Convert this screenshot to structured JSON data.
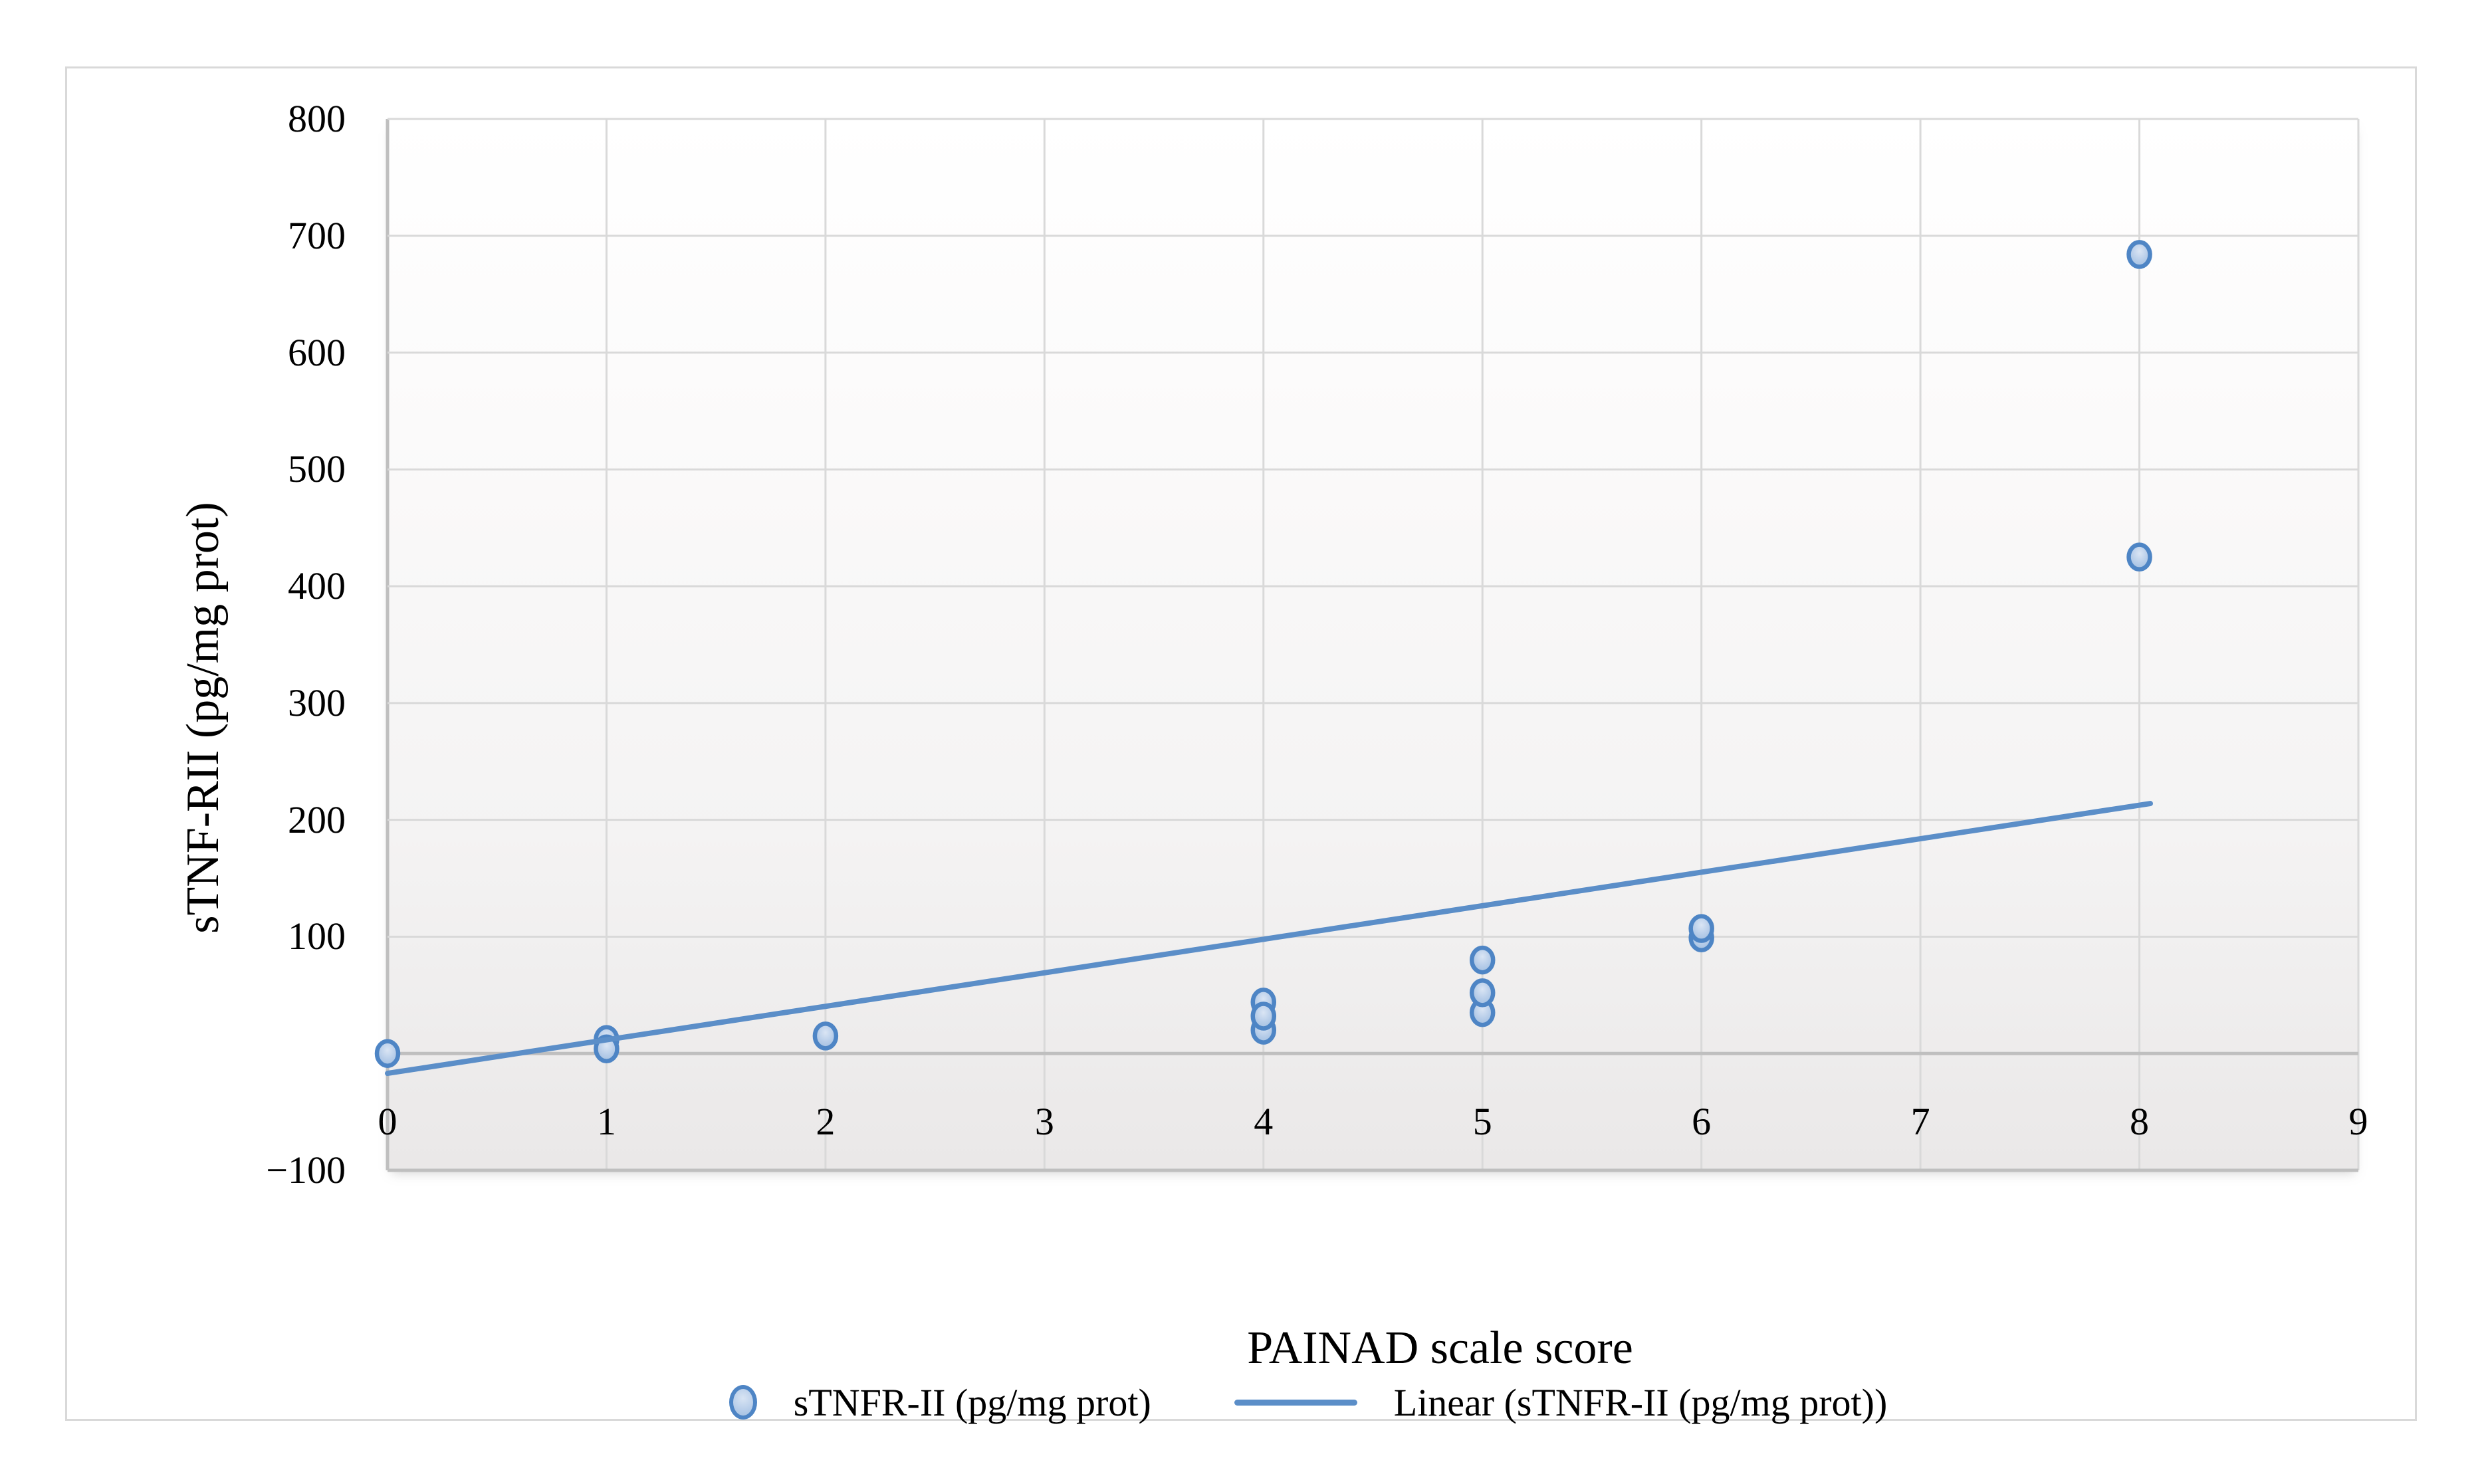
{
  "chart_data": {
    "type": "scatter",
    "title": "",
    "xlabel": "PAINAD scale score",
    "ylabel": "sTNF-RII (pg/mg prot)",
    "xlim": [
      0,
      9
    ],
    "ylim": [
      -100,
      800
    ],
    "grid": true,
    "grid_step_y": 100,
    "x_ticks": [
      0,
      1,
      2,
      3,
      4,
      5,
      6,
      7,
      8,
      9
    ],
    "y_ticks": [
      {
        "value": 800,
        "label": "800"
      },
      {
        "value": 700,
        "label": "700"
      },
      {
        "value": 600,
        "label": "600"
      },
      {
        "value": 500,
        "label": "500"
      },
      {
        "value": 400,
        "label": "400"
      },
      {
        "value": 300,
        "label": "300"
      },
      {
        "value": 200,
        "label": "200"
      },
      {
        "value": 100,
        "label": "100"
      },
      {
        "value": -100,
        "label": "−100"
      }
    ],
    "series": [
      {
        "name": "sTNFR-II (pg/mg prot)",
        "type": "scatter",
        "points": [
          [
            0,
            0
          ],
          [
            1,
            12
          ],
          [
            1,
            4
          ],
          [
            2,
            15
          ],
          [
            4,
            44
          ],
          [
            4,
            20
          ],
          [
            4,
            32
          ],
          [
            5,
            80
          ],
          [
            5,
            35
          ],
          [
            5,
            52
          ],
          [
            6,
            99
          ],
          [
            6,
            107
          ],
          [
            8,
            684
          ],
          [
            8,
            425
          ]
        ]
      },
      {
        "name": "Linear (sTNFR-II (pg/mg prot))",
        "type": "line",
        "from": [
          0,
          -17
        ],
        "to": [
          8.05,
          214
        ]
      }
    ],
    "legend": {
      "position": "bottom",
      "entries": [
        {
          "swatch": "marker",
          "label": "sTNFR-II (pg/mg prot)"
        },
        {
          "swatch": "line",
          "label": "Linear (sTNFR-II (pg/mg prot))"
        }
      ]
    }
  },
  "colors": {
    "marker_stroke": "#4e85c5",
    "marker_fill": "#b7cde9",
    "trend_line": "#5b8ec8",
    "gridline": "#d9d9d9",
    "axis_line": "#bfbfbf",
    "frame_border": "#d9d9d9",
    "text": "#000000"
  }
}
